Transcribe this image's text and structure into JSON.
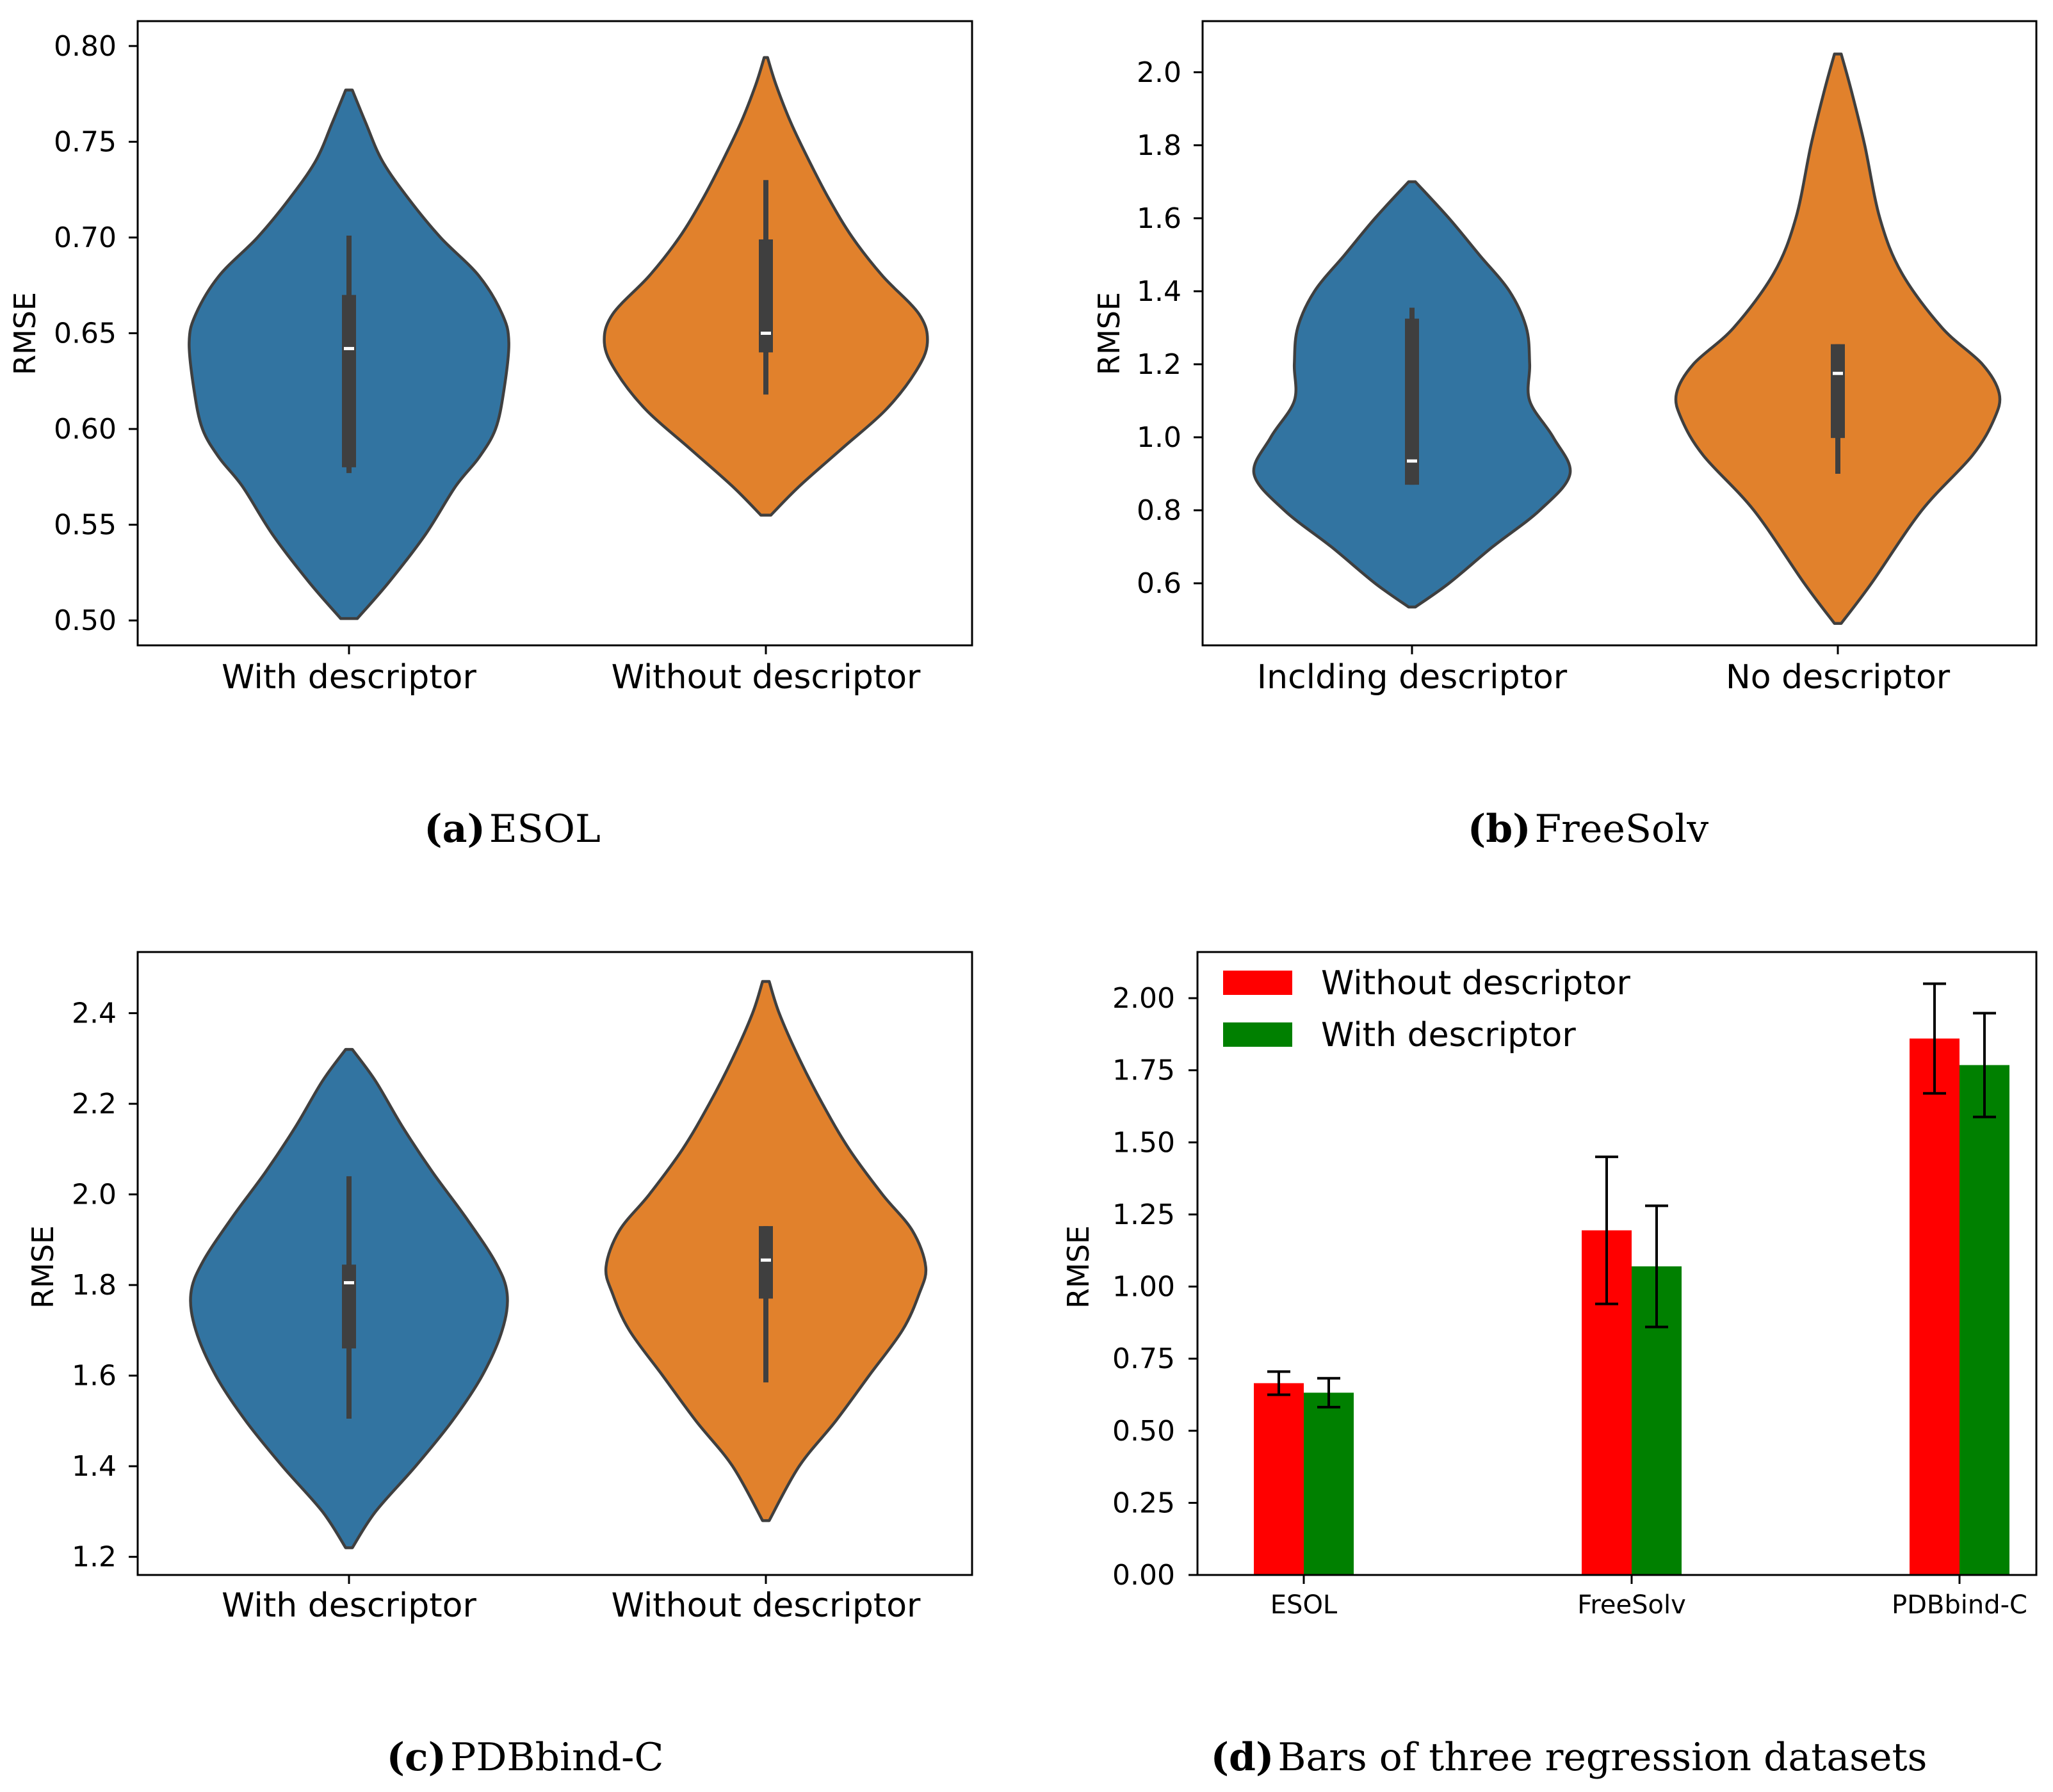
{
  "chart_data": [
    {
      "id": "a",
      "type": "violin",
      "ylabel": "RMSE",
      "ylim": [
        0.487,
        0.813
      ],
      "yticks": [
        0.5,
        0.55,
        0.6,
        0.65,
        0.7,
        0.75,
        0.8
      ],
      "ytick_labels": [
        "0.50",
        "0.55",
        "0.60",
        "0.65",
        "0.70",
        "0.75",
        "0.80"
      ],
      "categories": [
        "With descriptor",
        "Without descriptor"
      ],
      "caption_letter": "(a)",
      "caption_text": "ESOL",
      "violins": [
        {
          "color": "#3274a1",
          "profile": [
            [
              0.501,
              0.05
            ],
            [
              0.52,
              0.24
            ],
            [
              0.545,
              0.46
            ],
            [
              0.57,
              0.64
            ],
            [
              0.585,
              0.78
            ],
            [
              0.6,
              0.88
            ],
            [
              0.62,
              0.93
            ],
            [
              0.645,
              0.96
            ],
            [
              0.66,
              0.92
            ],
            [
              0.68,
              0.78
            ],
            [
              0.7,
              0.55
            ],
            [
              0.72,
              0.36
            ],
            [
              0.74,
              0.2
            ],
            [
              0.76,
              0.1
            ],
            [
              0.777,
              0.02
            ]
          ],
          "whisker": [
            0.577,
            0.701
          ],
          "box": [
            0.58,
            0.67
          ],
          "median": 0.642
        },
        {
          "color": "#e1812c",
          "profile": [
            [
              0.555,
              0.03
            ],
            [
              0.57,
              0.2
            ],
            [
              0.59,
              0.46
            ],
            [
              0.61,
              0.72
            ],
            [
              0.63,
              0.9
            ],
            [
              0.645,
              0.97
            ],
            [
              0.66,
              0.92
            ],
            [
              0.68,
              0.7
            ],
            [
              0.7,
              0.52
            ],
            [
              0.72,
              0.38
            ],
            [
              0.74,
              0.26
            ],
            [
              0.76,
              0.15
            ],
            [
              0.78,
              0.06
            ],
            [
              0.794,
              0.01
            ]
          ],
          "whisker": [
            0.618,
            0.73
          ],
          "box": [
            0.64,
            0.699
          ],
          "median": 0.65
        }
      ]
    },
    {
      "id": "b",
      "type": "violin",
      "ylabel": "RMSE",
      "ylim": [
        0.43,
        2.14
      ],
      "yticks": [
        0.6,
        0.8,
        1.0,
        1.2,
        1.4,
        1.6,
        1.8,
        2.0
      ],
      "ytick_labels": [
        "0.6",
        "0.8",
        "1.0",
        "1.2",
        "1.4",
        "1.6",
        "1.8",
        "2.0"
      ],
      "categories": [
        "Inclding descriptor",
        "No descriptor"
      ],
      "caption_letter": "(b)",
      "caption_text": "FreeSolv",
      "violins": [
        {
          "color": "#3274a1",
          "profile": [
            [
              0.535,
              0.02
            ],
            [
              0.6,
              0.22
            ],
            [
              0.7,
              0.48
            ],
            [
              0.8,
              0.76
            ],
            [
              0.9,
              0.94
            ],
            [
              1.0,
              0.84
            ],
            [
              1.1,
              0.7
            ],
            [
              1.2,
              0.7
            ],
            [
              1.3,
              0.68
            ],
            [
              1.4,
              0.58
            ],
            [
              1.5,
              0.4
            ],
            [
              1.6,
              0.22
            ],
            [
              1.7,
              0.02
            ]
          ],
          "whisker": [
            0.87,
            1.355
          ],
          "box": [
            0.87,
            1.325
          ],
          "median": 0.935
        },
        {
          "color": "#e1812c",
          "profile": [
            [
              0.49,
              0.02
            ],
            [
              0.6,
              0.2
            ],
            [
              0.8,
              0.5
            ],
            [
              0.95,
              0.8
            ],
            [
              1.05,
              0.93
            ],
            [
              1.12,
              0.96
            ],
            [
              1.2,
              0.86
            ],
            [
              1.3,
              0.62
            ],
            [
              1.45,
              0.38
            ],
            [
              1.6,
              0.25
            ],
            [
              1.8,
              0.16
            ],
            [
              1.95,
              0.08
            ],
            [
              2.05,
              0.02
            ]
          ],
          "whisker": [
            0.9,
            1.255
          ],
          "box": [
            0.998,
            1.255
          ],
          "median": 1.175
        }
      ]
    },
    {
      "id": "c",
      "type": "violin",
      "ylabel": "RMSE",
      "ylim": [
        1.16,
        2.535
      ],
      "yticks": [
        1.2,
        1.4,
        1.6,
        1.8,
        2.0,
        2.2,
        2.4
      ],
      "ytick_labels": [
        "1.2",
        "1.4",
        "1.6",
        "1.8",
        "2.0",
        "2.2",
        "2.4"
      ],
      "categories": [
        "With descriptor",
        "Without descriptor"
      ],
      "caption_letter": "(c)",
      "caption_text": "PDBbind-C",
      "violins": [
        {
          "color": "#3274a1",
          "profile": [
            [
              1.22,
              0.02
            ],
            [
              1.3,
              0.16
            ],
            [
              1.4,
              0.4
            ],
            [
              1.5,
              0.62
            ],
            [
              1.6,
              0.8
            ],
            [
              1.7,
              0.92
            ],
            [
              1.78,
              0.95
            ],
            [
              1.85,
              0.88
            ],
            [
              1.95,
              0.7
            ],
            [
              2.05,
              0.5
            ],
            [
              2.15,
              0.32
            ],
            [
              2.25,
              0.16
            ],
            [
              2.32,
              0.02
            ]
          ],
          "whisker": [
            1.505,
            2.04
          ],
          "box": [
            1.66,
            1.845
          ],
          "median": 1.805
        },
        {
          "color": "#e1812c",
          "profile": [
            [
              1.28,
              0.02
            ],
            [
              1.4,
              0.2
            ],
            [
              1.5,
              0.42
            ],
            [
              1.6,
              0.62
            ],
            [
              1.7,
              0.82
            ],
            [
              1.78,
              0.92
            ],
            [
              1.84,
              0.96
            ],
            [
              1.92,
              0.88
            ],
            [
              2.0,
              0.7
            ],
            [
              2.1,
              0.5
            ],
            [
              2.2,
              0.34
            ],
            [
              2.3,
              0.2
            ],
            [
              2.4,
              0.08
            ],
            [
              2.47,
              0.02
            ]
          ],
          "whisker": [
            1.585,
            1.93
          ],
          "box": [
            1.77,
            1.93
          ],
          "median": 1.855
        }
      ]
    },
    {
      "id": "d",
      "type": "bar",
      "ylabel": "RMSE",
      "ylim": [
        0,
        2.16
      ],
      "yticks": [
        0.0,
        0.25,
        0.5,
        0.75,
        1.0,
        1.25,
        1.5,
        1.75,
        2.0
      ],
      "ytick_labels": [
        "0.00",
        "0.25",
        "0.50",
        "0.75",
        "1.00",
        "1.25",
        "1.50",
        "1.75",
        "2.00"
      ],
      "categories": [
        "ESOL",
        "FreeSolv",
        "PDBbind-C"
      ],
      "caption_letter": "(d)",
      "caption_text": "Bars of three regression datasets",
      "legend_position": "upper-left",
      "series": [
        {
          "name": "Without descriptor",
          "color": "#ff0000",
          "values": [
            0.665,
            1.195,
            1.86
          ],
          "errors": [
            0.04,
            0.255,
            0.19
          ]
        },
        {
          "name": "With descriptor",
          "color": "#008000",
          "values": [
            0.632,
            1.07,
            1.768
          ],
          "errors": [
            0.05,
            0.21,
            0.18
          ]
        }
      ]
    }
  ]
}
